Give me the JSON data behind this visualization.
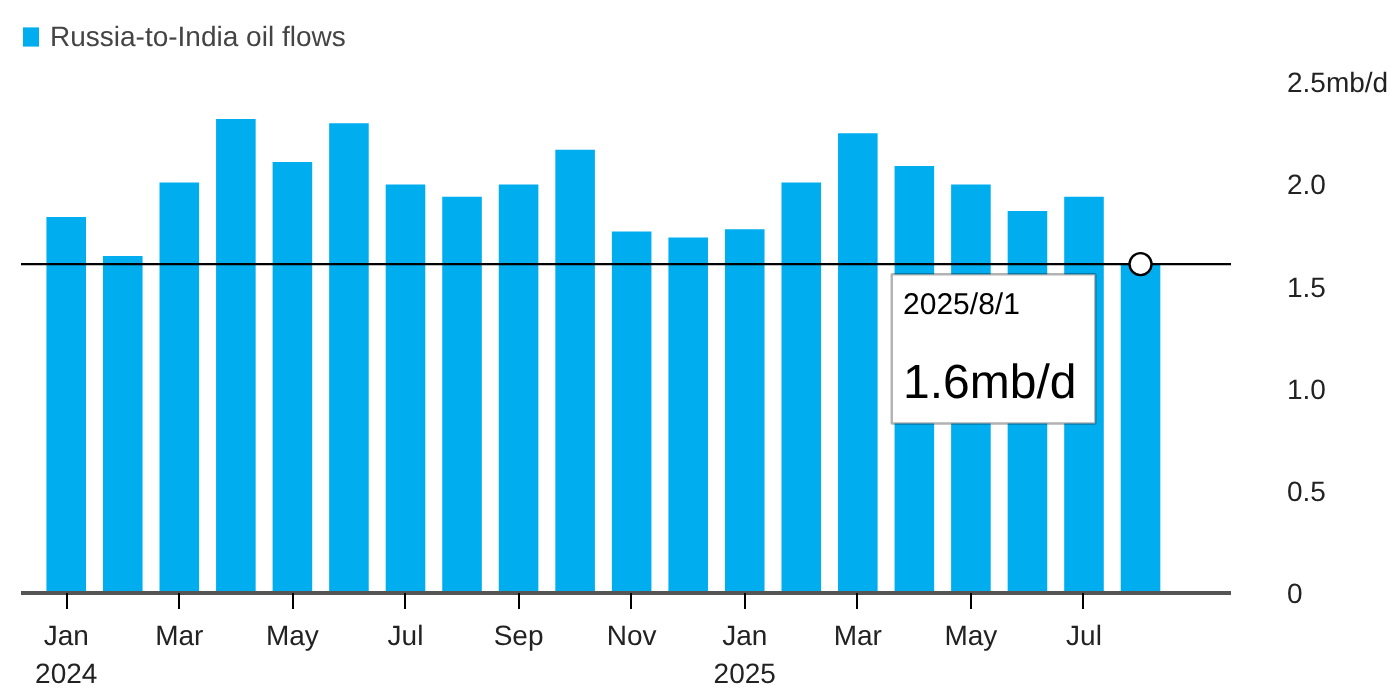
{
  "chart_data": {
    "type": "bar",
    "categories": [
      "Jan\n2024",
      null,
      "Mar",
      null,
      "May",
      null,
      "Jul",
      null,
      "Sep",
      null,
      "Nov",
      null,
      "Jan\n2025",
      null,
      "Mar",
      null,
      "May",
      null,
      "Jul",
      null
    ],
    "series": [
      {
        "name": "Russia-to-India oil flows",
        "color": "#00adef",
        "values": [
          1.84,
          1.65,
          2.01,
          2.32,
          2.11,
          2.3,
          2.0,
          1.94,
          2.0,
          2.17,
          1.77,
          1.74,
          1.78,
          2.01,
          2.25,
          2.09,
          2.0,
          1.87,
          1.94,
          1.61
        ]
      },
      {
        "type": "scatter",
        "color": "#ffffff",
        "marker": "circle",
        "values": [
          null,
          null,
          null,
          null,
          null,
          null,
          null,
          null,
          null,
          null,
          null,
          null,
          null,
          null,
          null,
          null,
          null,
          null,
          null,
          1.61
        ]
      }
    ],
    "ylim": [
      0,
      2.5
    ],
    "yticks": [
      {
        "value": 0,
        "label": "0"
      },
      {
        "value": 0.5,
        "label": "0.5"
      },
      {
        "value": 1,
        "label": "1.0"
      },
      {
        "value": 1.5,
        "label": "1.5"
      },
      {
        "value": 2,
        "label": "2.0"
      },
      {
        "value": 2.5,
        "label": "2.5mb/d"
      }
    ],
    "ref_lines": [
      {
        "axis": "y",
        "value": 1.61,
        "color": "#000000"
      }
    ],
    "annotations": [
      {
        "text": "2025/8/1",
        "y": 1.61
      },
      {
        "text": "1.6mb/d",
        "y": 1.61
      }
    ],
    "grid": false,
    "legend": "top left"
  }
}
